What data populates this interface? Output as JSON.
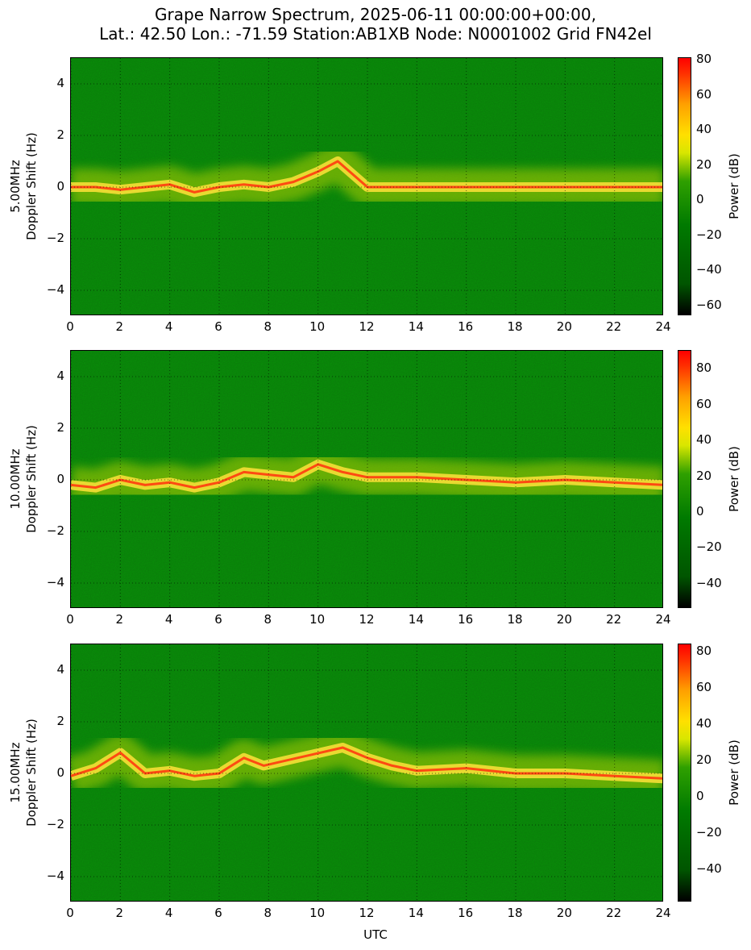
{
  "title": {
    "line1": "Grape Narrow Spectrum, 2025-06-11 00:00:00+00:00,",
    "line2": "Lat.: 42.50 Lon.: -71.59 Station:AB1XB Node: N0001002 Grid FN42el"
  },
  "xlabel": "UTC",
  "chart_data": [
    {
      "type": "heatmap",
      "ylabel_line1": "5.00MHz",
      "ylabel_line2": "Doppler Shift (Hz)",
      "xlabel": "",
      "colorbar_label": "Power (dB)",
      "xlim": [
        0,
        24
      ],
      "ylim": [
        -5,
        5
      ],
      "xticks": [
        "0",
        "2",
        "4",
        "6",
        "8",
        "10",
        "12",
        "14",
        "16",
        "18",
        "20",
        "22",
        "24"
      ],
      "yticks": [
        "4",
        "2",
        "0",
        "−2",
        "−4"
      ],
      "colorbar_range": [
        -66,
        81
      ],
      "colorbar_ticks": [
        "80",
        "60",
        "40",
        "20",
        "0",
        "−20",
        "−40",
        "−60"
      ],
      "grid": true,
      "trace": [
        {
          "utc": 0.0,
          "doppler_hz": 0.0
        },
        {
          "utc": 1.0,
          "doppler_hz": 0.0
        },
        {
          "utc": 2.0,
          "doppler_hz": -0.1
        },
        {
          "utc": 3.0,
          "doppler_hz": 0.0
        },
        {
          "utc": 4.0,
          "doppler_hz": 0.1
        },
        {
          "utc": 5.0,
          "doppler_hz": -0.2
        },
        {
          "utc": 6.0,
          "doppler_hz": 0.0
        },
        {
          "utc": 7.0,
          "doppler_hz": 0.1
        },
        {
          "utc": 8.0,
          "doppler_hz": 0.0
        },
        {
          "utc": 9.0,
          "doppler_hz": 0.2
        },
        {
          "utc": 10.0,
          "doppler_hz": 0.6
        },
        {
          "utc": 10.8,
          "doppler_hz": 1.0
        },
        {
          "utc": 12.0,
          "doppler_hz": 0.0
        },
        {
          "utc": 14.0,
          "doppler_hz": 0.0
        },
        {
          "utc": 24.0,
          "doppler_hz": 0.0
        }
      ]
    },
    {
      "type": "heatmap",
      "ylabel_line1": "10.00MHz",
      "ylabel_line2": "Doppler Shift (Hz)",
      "xlabel": "",
      "colorbar_label": "Power (dB)",
      "xlim": [
        0,
        24
      ],
      "ylim": [
        -5,
        5
      ],
      "xticks": [
        "0",
        "2",
        "4",
        "6",
        "8",
        "10",
        "12",
        "14",
        "16",
        "18",
        "20",
        "22",
        "24"
      ],
      "yticks": [
        "4",
        "2",
        "0",
        "−2",
        "−4"
      ],
      "colorbar_range": [
        -54,
        90
      ],
      "colorbar_ticks": [
        "80",
        "60",
        "40",
        "20",
        "0",
        "−20",
        "−40"
      ],
      "grid": true,
      "trace": [
        {
          "utc": 0.0,
          "doppler_hz": -0.2
        },
        {
          "utc": 1.0,
          "doppler_hz": -0.3
        },
        {
          "utc": 2.0,
          "doppler_hz": 0.0
        },
        {
          "utc": 3.0,
          "doppler_hz": -0.2
        },
        {
          "utc": 4.0,
          "doppler_hz": -0.1
        },
        {
          "utc": 5.0,
          "doppler_hz": -0.3
        },
        {
          "utc": 6.0,
          "doppler_hz": -0.1
        },
        {
          "utc": 7.0,
          "doppler_hz": 0.3
        },
        {
          "utc": 8.0,
          "doppler_hz": 0.2
        },
        {
          "utc": 9.0,
          "doppler_hz": 0.1
        },
        {
          "utc": 10.0,
          "doppler_hz": 0.6
        },
        {
          "utc": 11.0,
          "doppler_hz": 0.3
        },
        {
          "utc": 12.0,
          "doppler_hz": 0.1
        },
        {
          "utc": 14.0,
          "doppler_hz": 0.1
        },
        {
          "utc": 16.0,
          "doppler_hz": 0.0
        },
        {
          "utc": 18.0,
          "doppler_hz": -0.1
        },
        {
          "utc": 20.0,
          "doppler_hz": 0.0
        },
        {
          "utc": 22.0,
          "doppler_hz": -0.1
        },
        {
          "utc": 24.0,
          "doppler_hz": -0.2
        }
      ]
    },
    {
      "type": "heatmap",
      "ylabel_line1": "15.00MHz",
      "ylabel_line2": "Doppler Shift (Hz)",
      "xlabel": "UTC",
      "colorbar_label": "Power (dB)",
      "xlim": [
        0,
        24
      ],
      "ylim": [
        -5,
        5
      ],
      "xticks": [
        "0",
        "2",
        "4",
        "6",
        "8",
        "10",
        "12",
        "14",
        "16",
        "18",
        "20",
        "22",
        "24"
      ],
      "yticks": [
        "4",
        "2",
        "0",
        "−2",
        "−4"
      ],
      "colorbar_range": [
        -58,
        84
      ],
      "colorbar_ticks": [
        "80",
        "60",
        "40",
        "20",
        "0",
        "−20",
        "−40"
      ],
      "grid": true,
      "trace": [
        {
          "utc": 0.0,
          "doppler_hz": -0.1
        },
        {
          "utc": 1.0,
          "doppler_hz": 0.2
        },
        {
          "utc": 2.0,
          "doppler_hz": 0.8
        },
        {
          "utc": 3.0,
          "doppler_hz": 0.0
        },
        {
          "utc": 4.0,
          "doppler_hz": 0.1
        },
        {
          "utc": 5.0,
          "doppler_hz": -0.1
        },
        {
          "utc": 6.0,
          "doppler_hz": 0.0
        },
        {
          "utc": 7.0,
          "doppler_hz": 0.6
        },
        {
          "utc": 7.8,
          "doppler_hz": 0.3
        },
        {
          "utc": 11.0,
          "doppler_hz": 1.0
        },
        {
          "utc": 12.0,
          "doppler_hz": 0.6
        },
        {
          "utc": 13.0,
          "doppler_hz": 0.3
        },
        {
          "utc": 14.0,
          "doppler_hz": 0.1
        },
        {
          "utc": 16.0,
          "doppler_hz": 0.2
        },
        {
          "utc": 18.0,
          "doppler_hz": 0.0
        },
        {
          "utc": 20.0,
          "doppler_hz": 0.0
        },
        {
          "utc": 22.0,
          "doppler_hz": -0.1
        },
        {
          "utc": 24.0,
          "doppler_hz": -0.2
        }
      ]
    }
  ]
}
